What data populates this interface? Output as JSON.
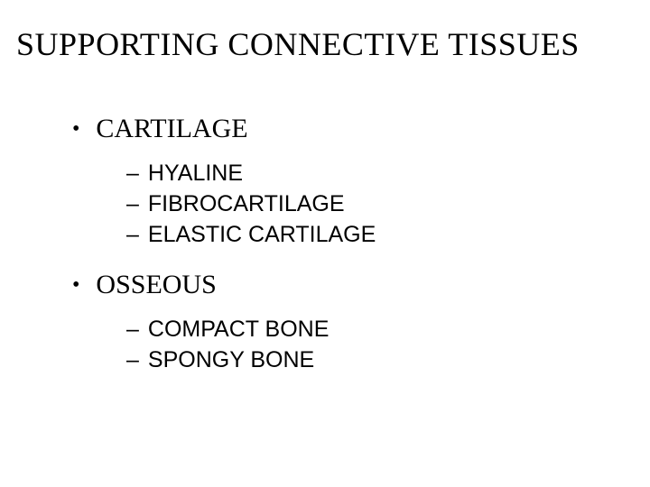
{
  "title": "SUPPORTING CONNECTIVE TISSUES",
  "items": [
    {
      "label": "CARTILAGE",
      "sub": [
        {
          "label": "HYALINE"
        },
        {
          "label": "FIBROCARTILAGE"
        },
        {
          "label": "ELASTIC CARTILAGE"
        }
      ]
    },
    {
      "label": "OSSEOUS",
      "sub": [
        {
          "label": "COMPACT BONE"
        },
        {
          "label": "SPONGY BONE"
        }
      ]
    }
  ],
  "colors": {
    "background": "#ffffff",
    "text": "#000000"
  },
  "typography": {
    "title_fontsize": 36,
    "level1_fontsize": 30,
    "level2_fontsize": 25
  }
}
